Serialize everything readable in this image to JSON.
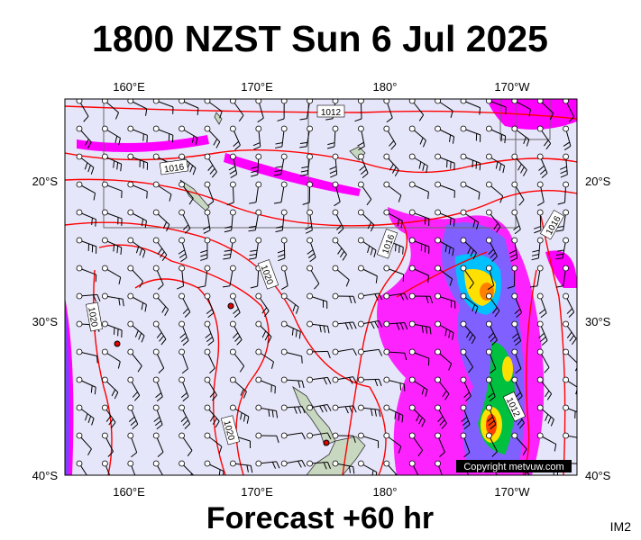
{
  "title": "1800 NZST Sun 6 Jul 2025",
  "footer": "Forecast +60 hr",
  "corner_label": "IM2",
  "copyright": "Copyright metvuw.com",
  "axes": {
    "top": [
      "160°E",
      "170°E",
      "180°",
      "170°W"
    ],
    "bottom": [
      "160°E",
      "170°E",
      "180°",
      "170°W"
    ],
    "left": [
      "20°S",
      "30°S",
      "40°S"
    ],
    "right": [
      "20°S",
      "30°S",
      "40°S"
    ]
  },
  "isobar_labels": [
    "1012",
    "1016",
    "1016",
    "1020",
    "1016",
    "1020",
    "1012",
    "1020"
  ]
}
